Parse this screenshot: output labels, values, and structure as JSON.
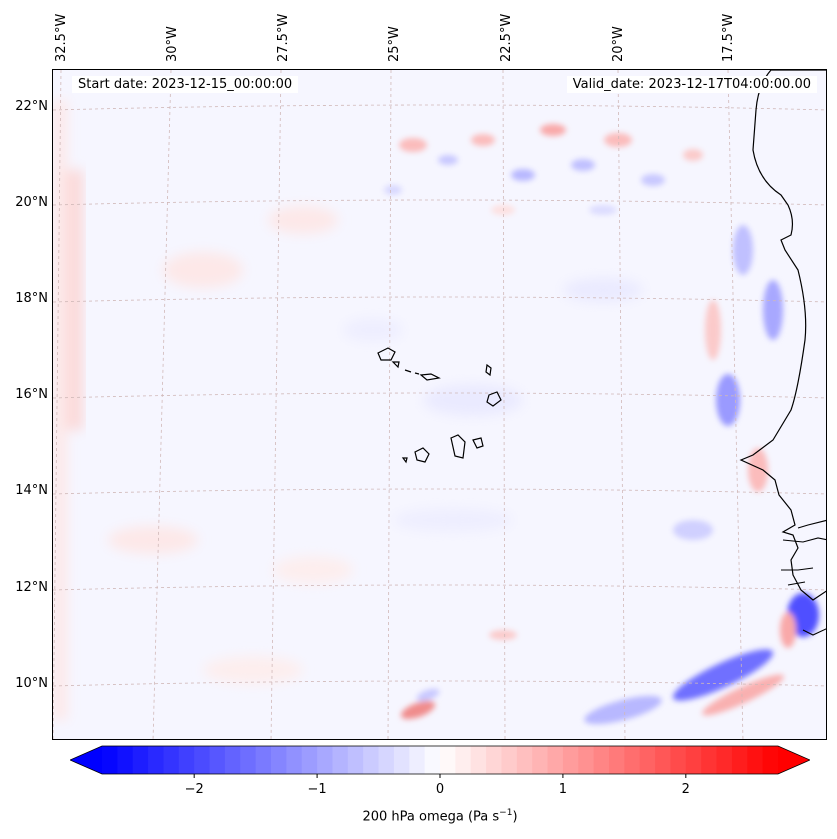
{
  "header": {
    "start_date": "Start date: 2023-12-15_00:00:00",
    "valid_date": "Valid_date: 2023-12-17T04:00:00.00"
  },
  "axes": {
    "lon_labels": [
      "32.5°W",
      "30°W",
      "27.5°W",
      "25°W",
      "22.5°W",
      "20°W",
      "17.5°W"
    ],
    "lat_labels": [
      "22°N",
      "20°N",
      "18°N",
      "16°N",
      "14°N",
      "12°N",
      "10°N"
    ],
    "lon_range": [
      -33.0,
      -15.6
    ],
    "lat_range": [
      8.8,
      22.8
    ],
    "gridlines": true
  },
  "colorbar": {
    "label_prefix": "200 hPa omega (Pa s",
    "label_exp": "−1",
    "label_suffix": ")",
    "range": [
      -2.75,
      2.75
    ],
    "extend": "both",
    "ticks": [
      -2,
      -1,
      0,
      1,
      2
    ],
    "tick_labels": [
      "−2",
      "−1",
      "0",
      "1",
      "2"
    ],
    "cmap": "bwr",
    "colors": {
      "negative": "#0000ff",
      "zero": "#ffffff",
      "positive": "#ff0000"
    }
  },
  "chart_data": {
    "type": "heatmap",
    "variable": "200 hPa omega",
    "units": "Pa s-1",
    "features": [
      {
        "kind": "positive_band",
        "lon": -32.5,
        "lat": 17.5,
        "value": 0.5
      },
      {
        "kind": "mixed_cells",
        "lon": -21.5,
        "lat": 21.5,
        "value": 1.0
      },
      {
        "kind": "negative_cell",
        "lon": -17.0,
        "lat": 15.5,
        "value": -1.5
      },
      {
        "kind": "negative_cell",
        "lon": -18.3,
        "lat": 10.2,
        "value": -2.0
      },
      {
        "kind": "positive_cell",
        "lon": -24.5,
        "lat": 9.2,
        "value": 1.2
      },
      {
        "kind": "negative_cell",
        "lon": -15.8,
        "lat": 11.2,
        "value": -2.0
      }
    ]
  }
}
